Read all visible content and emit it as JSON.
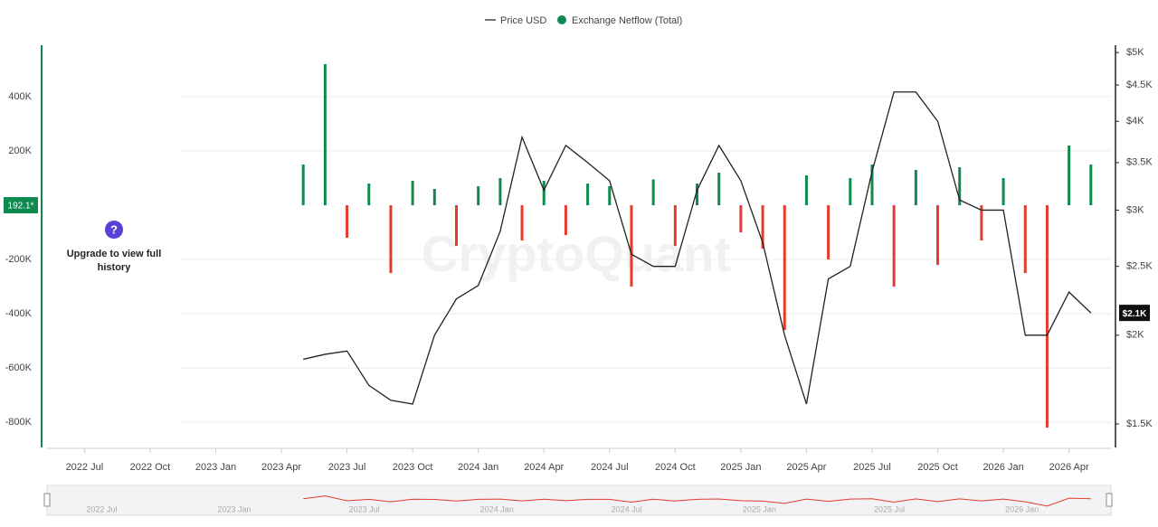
{
  "chart_data": {
    "type": "dual-axis",
    "legend": [
      "Price USD",
      "Exchange Netflow (Total)"
    ],
    "overlay_text": "Upgrade to view full history",
    "overlay_icon": "?",
    "watermark": "CryptoQuant",
    "x": [
      "2023-05",
      "2023-06",
      "2023-07",
      "2023-08",
      "2023-09",
      "2023-10",
      "2023-11",
      "2023-12",
      "2024-01",
      "2024-02",
      "2024-03",
      "2024-04",
      "2024-05",
      "2024-06",
      "2024-07",
      "2024-08",
      "2024-09",
      "2024-10",
      "2024-11",
      "2024-12",
      "2025-01",
      "2025-02",
      "2025-03",
      "2025-04",
      "2025-05",
      "2025-06",
      "2025-07",
      "2025-08",
      "2025-09",
      "2025-10",
      "2025-11",
      "2025-12",
      "2026-01",
      "2026-02",
      "2026-03",
      "2026-04",
      "2026-05"
    ],
    "series": [
      {
        "name": "Exchange Netflow (Total)",
        "color": "#0f8a4f",
        "negative_color": "#e53b2c",
        "axis": "y",
        "values": [
          150000,
          520000,
          -120000,
          80000,
          -250000,
          90000,
          60000,
          -150000,
          70000,
          100000,
          -130000,
          90000,
          -110000,
          80000,
          70000,
          -300000,
          95000,
          -150000,
          80000,
          120000,
          -100000,
          -160000,
          -460000,
          110000,
          -200000,
          100000,
          150000,
          -300000,
          130000,
          -220000,
          140000,
          -130000,
          100000,
          -250000,
          -820000,
          220000,
          150000
        ],
        "current_label": "192.1*"
      },
      {
        "name": "Price USD",
        "color": "#222222",
        "axis": "y2",
        "values": [
          1850,
          1880,
          1900,
          1700,
          1620,
          1600,
          2000,
          2250,
          2350,
          2800,
          3800,
          3200,
          3700,
          3500,
          3300,
          2600,
          2500,
          2500,
          3200,
          3700,
          3300,
          2700,
          2000,
          1600,
          2400,
          2500,
          3400,
          4400,
          4400,
          4000,
          3100,
          3000,
          3000,
          2000,
          2000,
          2300,
          2150
        ],
        "current_label": "$2.1K"
      }
    ],
    "xlim": [
      "2022-05",
      "2026-06"
    ],
    "xticks": [
      {
        "value": "2022-07",
        "label": "2022 Jul"
      },
      {
        "value": "2022-10",
        "label": "2022 Oct"
      },
      {
        "value": "2023-01",
        "label": "2023 Jan"
      },
      {
        "value": "2023-04",
        "label": "2023 Apr"
      },
      {
        "value": "2023-07",
        "label": "2023 Jul"
      },
      {
        "value": "2023-10",
        "label": "2023 Oct"
      },
      {
        "value": "2024-01",
        "label": "2024 Jan"
      },
      {
        "value": "2024-04",
        "label": "2024 Apr"
      },
      {
        "value": "2024-07",
        "label": "2024 Jul"
      },
      {
        "value": "2024-10",
        "label": "2024 Oct"
      },
      {
        "value": "2025-01",
        "label": "2025 Jan"
      },
      {
        "value": "2025-04",
        "label": "2025 Apr"
      },
      {
        "value": "2025-07",
        "label": "2025 Jul"
      },
      {
        "value": "2025-10",
        "label": "2025 Oct"
      },
      {
        "value": "2026-01",
        "label": "2026 Jan"
      },
      {
        "value": "2026-04",
        "label": "2026 Apr"
      }
    ],
    "ylim": [
      -893000,
      590000
    ],
    "yticks": [
      {
        "value": 400000,
        "label": "400K"
      },
      {
        "value": 200000,
        "label": "200K"
      },
      {
        "value": -200000,
        "label": "-200K"
      },
      {
        "value": -400000,
        "label": "-400K"
      },
      {
        "value": -600000,
        "label": "-600K"
      },
      {
        "value": -800000,
        "label": "-800K"
      }
    ],
    "y2lim": [
      1390,
      5120
    ],
    "y2scale": "log",
    "y2ticks": [
      {
        "value": 5000,
        "label": "$5K"
      },
      {
        "value": 4500,
        "label": "$4.5K"
      },
      {
        "value": 4000,
        "label": "$4K"
      },
      {
        "value": 3500,
        "label": "$3.5K"
      },
      {
        "value": 3000,
        "label": "$3K"
      },
      {
        "value": 2500,
        "label": "$2.5K"
      },
      {
        "value": 2000,
        "label": "$2K"
      },
      {
        "value": 1500,
        "label": "$1.5K"
      }
    ],
    "grid": true
  }
}
